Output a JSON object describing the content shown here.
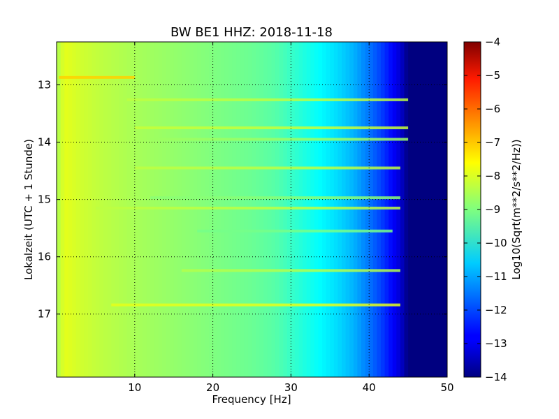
{
  "chart_data": {
    "type": "heatmap",
    "title": "BW BE1 HHZ: 2018-11-18",
    "xlabel": "Frequency [Hz]",
    "ylabel": "Lokalzeit (UTC + 1 Stunde)",
    "xlim": [
      0,
      50
    ],
    "ylim": [
      12.25,
      18.1
    ],
    "y_inverted": true,
    "x_ticks": [
      10,
      20,
      30,
      40,
      50
    ],
    "x_tick_labels": [
      "10",
      "20",
      "30",
      "40",
      "50"
    ],
    "y_ticks": [
      13,
      14,
      15,
      16,
      17
    ],
    "y_tick_labels": [
      "13",
      "14",
      "15",
      "16",
      "17"
    ],
    "grid": true,
    "colorscale": "jet",
    "colorbar": {
      "label": "Log10(Sqrt(m**2/s**2/Hz))",
      "range": [
        -14,
        -4
      ],
      "ticks": [
        -4,
        -5,
        -6,
        -7,
        -8,
        -9,
        -10,
        -11,
        -12,
        -13,
        -14
      ],
      "tick_labels": [
        "−4",
        "−5",
        "−6",
        "−7",
        "−8",
        "−9",
        "−10",
        "−11",
        "−12",
        "−13",
        "−14"
      ]
    },
    "spectrum_profile": {
      "frequency_hz": [
        0,
        1,
        3,
        6,
        10,
        15,
        20,
        25,
        28,
        30,
        32,
        34,
        36,
        38,
        40,
        42,
        44,
        45,
        50
      ],
      "log10_amplitude": [
        -8.6,
        -8.0,
        -8.2,
        -8.4,
        -8.6,
        -8.8,
        -9.0,
        -9.2,
        -9.4,
        -9.7,
        -10.0,
        -10.3,
        -10.6,
        -11.0,
        -11.6,
        -12.3,
        -13.2,
        -14,
        -14
      ]
    },
    "bands": [
      {
        "time": 12.87,
        "fmin": 0.3,
        "fmax": 10,
        "log10_amplitude": -7.3
      },
      {
        "time": 13.26,
        "fmin": 9,
        "fmax": 45,
        "log10_amplitude": -8.4
      },
      {
        "time": 13.75,
        "fmin": 10,
        "fmax": 45,
        "log10_amplitude": -8.3
      },
      {
        "time": 13.95,
        "fmin": 12,
        "fmax": 45,
        "log10_amplitude": -8.7
      },
      {
        "time": 14.45,
        "fmin": 10,
        "fmax": 44,
        "log10_amplitude": -8.4
      },
      {
        "time": 14.97,
        "fmin": 12,
        "fmax": 44,
        "log10_amplitude": -8.9
      },
      {
        "time": 15.15,
        "fmin": 5,
        "fmax": 44,
        "log10_amplitude": -8.4
      },
      {
        "time": 15.55,
        "fmin": 18,
        "fmax": 43,
        "log10_amplitude": -9.1
      },
      {
        "time": 16.24,
        "fmin": 16,
        "fmax": 44,
        "log10_amplitude": -8.5
      },
      {
        "time": 16.84,
        "fmin": 7,
        "fmax": 44,
        "log10_amplitude": -8.0
      }
    ]
  }
}
